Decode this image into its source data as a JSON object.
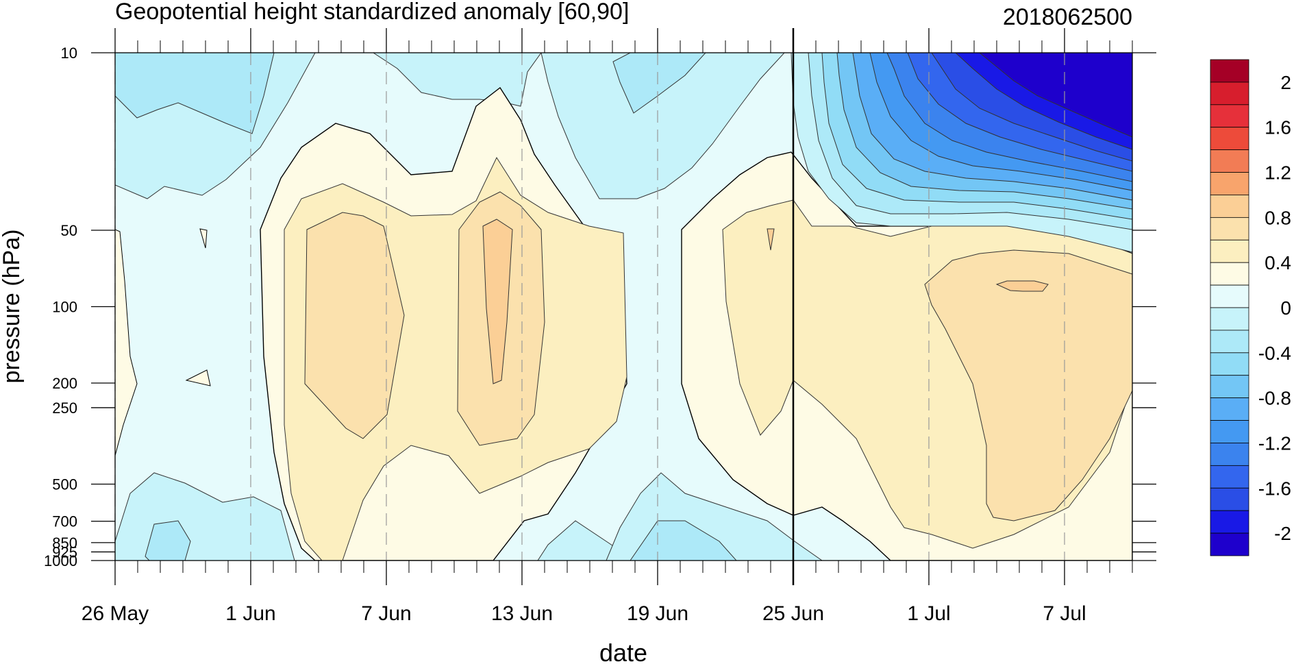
{
  "chart_data": {
    "type": "heatmap",
    "title": "Geopotential height standardized anomaly [60,90]",
    "date_label": "2018062500",
    "xlabel": "date",
    "ylabel": "pressure (hPa)",
    "x_tick_labels": [
      "26 May",
      "1 Jun",
      "7 Jun",
      "13 Jun",
      "19 Jun",
      "25 Jun",
      "1 Jul",
      "7 Jul"
    ],
    "x_tick_days": [
      0,
      6,
      12,
      18,
      24,
      30,
      36,
      42
    ],
    "x_range_days": [
      0,
      45
    ],
    "forecast_start_day": 30,
    "y_scale": "log",
    "y_reversed": true,
    "y_range": [
      10,
      1000
    ],
    "y_tick_values": [
      10,
      50,
      100,
      200,
      250,
      500,
      700,
      850,
      925,
      1000
    ],
    "y_tick_labels": [
      "10",
      "50",
      "100",
      "200",
      "250",
      "500",
      "700",
      "850",
      "925",
      "1000"
    ],
    "colorbar": {
      "levels": [
        -2.2,
        -2.0,
        -1.8,
        -1.6,
        -1.4,
        -1.2,
        -1.0,
        -0.8,
        -0.6,
        -0.4,
        -0.2,
        0,
        0.2,
        0.4,
        0.6,
        0.8,
        1.0,
        1.2,
        1.4,
        1.6,
        1.8,
        2.0,
        2.2
      ],
      "colors": [
        "#1e00cc",
        "#1919e6",
        "#2a4ee6",
        "#3366ee",
        "#3b83ee",
        "#4499f2",
        "#5aaef6",
        "#73c6f5",
        "#91dcf6",
        "#ade9f8",
        "#c7f3fa",
        "#e6fbfc",
        "#fefbe5",
        "#fcefc0",
        "#fbe1ad",
        "#fbcf96",
        "#f8a46c",
        "#f27c55",
        "#ed4b3a",
        "#e6303a",
        "#d71e2d",
        "#a50026"
      ],
      "tick_labels": [
        "2",
        "1.6",
        "1.2",
        "0.8",
        "0.4",
        "0",
        "-0.4",
        "-0.8",
        "-1.2",
        "-1.6",
        "-2"
      ],
      "tick_values": [
        2,
        1.6,
        1.2,
        0.8,
        0.4,
        0,
        -0.4,
        -0.8,
        -1.2,
        -1.6,
        -2
      ]
    }
  }
}
